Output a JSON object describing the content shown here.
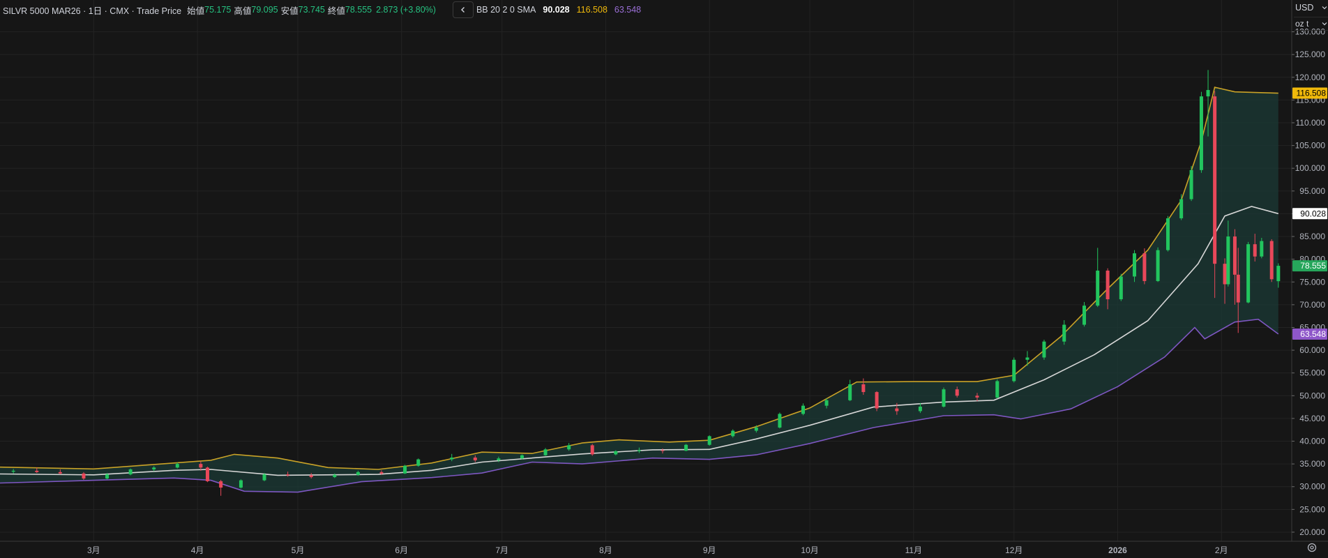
{
  "legend": {
    "symbol": "SILVR 5000 MAR26 · 1日 · CMX · Trade Price",
    "open_label": "始値",
    "open": "75.175",
    "high_label": "高値",
    "high": "79.095",
    "low_label": "安値",
    "low": "73.745",
    "close_label": "終値",
    "close": "78.555",
    "change": "2.873 (+3.80%)",
    "collapse_icon": "chevron-left-icon",
    "indicator": "BB 20 2 0 SMA",
    "basis": "90.028",
    "upper": "116.508",
    "lower": "63.548"
  },
  "currency": {
    "label": "USD",
    "unit": "oz t"
  },
  "settings_icon": "gear-icon",
  "colors": {
    "up": "#26a69a",
    "up_bright": "#22c55e",
    "down": "#e8485a",
    "upper_band": "#c9a227",
    "lower_band": "#7e57c2",
    "basis": "#d6d6d6",
    "band_fill": "#1b3a36",
    "current_price_bg": "#26a65b",
    "upper_label_bg": "#f0b90b",
    "lower_label_bg": "#8e57c9"
  },
  "chart_data": {
    "type": "candlestick",
    "title": "SILVR 5000 MAR26",
    "y_ticks": [
      20,
      25,
      30,
      35,
      40,
      45,
      50,
      55,
      60,
      65,
      70,
      75,
      80,
      85,
      90,
      95,
      100,
      105,
      110,
      115,
      120,
      125,
      130
    ],
    "ylim": [
      18,
      133
    ],
    "x_labels": [
      {
        "label": "3月",
        "date": "2025-03-01"
      },
      {
        "label": "4月",
        "date": "2025-04-01"
      },
      {
        "label": "5月",
        "date": "2025-05-01"
      },
      {
        "label": "6月",
        "date": "2025-06-01"
      },
      {
        "label": "7月",
        "date": "2025-07-01"
      },
      {
        "label": "8月",
        "date": "2025-08-01"
      },
      {
        "label": "9月",
        "date": "2025-09-01"
      },
      {
        "label": "10月",
        "date": "2025-10-01"
      },
      {
        "label": "11月",
        "date": "2025-11-01"
      },
      {
        "label": "12月",
        "date": "2025-12-01"
      },
      {
        "label": "2026",
        "date": "2026-01-01"
      },
      {
        "label": "2月",
        "date": "2026-02-01"
      }
    ],
    "xlim_dates": [
      "2025-02-01",
      "2026-02-22"
    ],
    "series": [
      {
        "name": "Price",
        "candles": [
          {
            "d": "2025-02-05",
            "o": 33.3,
            "h": 33.9,
            "l": 32.9,
            "c": 33.5
          },
          {
            "d": "2025-02-12",
            "o": 33.5,
            "h": 34.2,
            "l": 33.0,
            "c": 33.2
          },
          {
            "d": "2025-02-19",
            "o": 33.2,
            "h": 33.8,
            "l": 32.7,
            "c": 32.9
          },
          {
            "d": "2025-02-26",
            "o": 32.9,
            "h": 33.2,
            "l": 31.5,
            "c": 31.8
          },
          {
            "d": "2025-03-05",
            "o": 31.8,
            "h": 33.0,
            "l": 31.6,
            "c": 32.7
          },
          {
            "d": "2025-03-12",
            "o": 32.7,
            "h": 34.0,
            "l": 32.5,
            "c": 33.8
          },
          {
            "d": "2025-03-19",
            "o": 33.8,
            "h": 34.5,
            "l": 33.4,
            "c": 34.2
          },
          {
            "d": "2025-03-26",
            "o": 34.2,
            "h": 35.3,
            "l": 34.0,
            "c": 35.0
          },
          {
            "d": "2025-04-02",
            "o": 35.0,
            "h": 35.6,
            "l": 33.5,
            "c": 34.2
          },
          {
            "d": "2025-04-04",
            "o": 34.2,
            "h": 34.4,
            "l": 31.0,
            "c": 31.2
          },
          {
            "d": "2025-04-08",
            "o": 31.2,
            "h": 31.5,
            "l": 28.0,
            "c": 29.8
          },
          {
            "d": "2025-04-14",
            "o": 29.8,
            "h": 31.6,
            "l": 29.6,
            "c": 31.4
          },
          {
            "d": "2025-04-21",
            "o": 31.4,
            "h": 33.0,
            "l": 31.2,
            "c": 32.7
          },
          {
            "d": "2025-04-28",
            "o": 32.7,
            "h": 33.3,
            "l": 32.2,
            "c": 32.5
          },
          {
            "d": "2025-05-05",
            "o": 32.5,
            "h": 33.0,
            "l": 31.8,
            "c": 32.1
          },
          {
            "d": "2025-05-12",
            "o": 32.1,
            "h": 32.9,
            "l": 31.9,
            "c": 32.6
          },
          {
            "d": "2025-05-19",
            "o": 32.6,
            "h": 33.5,
            "l": 32.4,
            "c": 33.2
          },
          {
            "d": "2025-05-26",
            "o": 33.2,
            "h": 33.6,
            "l": 32.6,
            "c": 32.9
          },
          {
            "d": "2025-06-02",
            "o": 32.9,
            "h": 34.8,
            "l": 32.8,
            "c": 34.6
          },
          {
            "d": "2025-06-06",
            "o": 34.6,
            "h": 36.2,
            "l": 34.4,
            "c": 36.0
          },
          {
            "d": "2025-06-16",
            "o": 36.0,
            "h": 37.2,
            "l": 35.6,
            "c": 36.4
          },
          {
            "d": "2025-06-23",
            "o": 36.4,
            "h": 36.9,
            "l": 35.4,
            "c": 35.8
          },
          {
            "d": "2025-06-30",
            "o": 35.8,
            "h": 36.6,
            "l": 35.4,
            "c": 36.2
          },
          {
            "d": "2025-07-07",
            "o": 36.2,
            "h": 37.1,
            "l": 36.0,
            "c": 36.9
          },
          {
            "d": "2025-07-14",
            "o": 36.9,
            "h": 38.5,
            "l": 36.8,
            "c": 38.2
          },
          {
            "d": "2025-07-21",
            "o": 38.2,
            "h": 39.6,
            "l": 37.9,
            "c": 39.1
          },
          {
            "d": "2025-07-28",
            "o": 39.1,
            "h": 39.4,
            "l": 36.8,
            "c": 37.1
          },
          {
            "d": "2025-08-04",
            "o": 37.1,
            "h": 38.0,
            "l": 36.9,
            "c": 37.8
          },
          {
            "d": "2025-08-11",
            "o": 37.8,
            "h": 38.6,
            "l": 37.4,
            "c": 38.0
          },
          {
            "d": "2025-08-18",
            "o": 38.0,
            "h": 38.4,
            "l": 37.3,
            "c": 37.9
          },
          {
            "d": "2025-08-25",
            "o": 37.9,
            "h": 39.4,
            "l": 37.8,
            "c": 39.2
          },
          {
            "d": "2025-09-01",
            "o": 39.2,
            "h": 41.3,
            "l": 39.0,
            "c": 41.1
          },
          {
            "d": "2025-09-08",
            "o": 41.1,
            "h": 42.6,
            "l": 40.8,
            "c": 42.3
          },
          {
            "d": "2025-09-15",
            "o": 42.3,
            "h": 43.5,
            "l": 41.9,
            "c": 43.0
          },
          {
            "d": "2025-09-22",
            "o": 43.0,
            "h": 46.3,
            "l": 42.8,
            "c": 46.0
          },
          {
            "d": "2025-09-29",
            "o": 46.0,
            "h": 48.3,
            "l": 45.7,
            "c": 47.8
          },
          {
            "d": "2025-10-06",
            "o": 47.8,
            "h": 49.4,
            "l": 47.2,
            "c": 49.0
          },
          {
            "d": "2025-10-13",
            "o": 49.0,
            "h": 53.5,
            "l": 48.8,
            "c": 52.5
          },
          {
            "d": "2025-10-17",
            "o": 52.5,
            "h": 53.8,
            "l": 50.2,
            "c": 50.8
          },
          {
            "d": "2025-10-21",
            "o": 50.8,
            "h": 51.0,
            "l": 46.6,
            "c": 47.2
          },
          {
            "d": "2025-10-27",
            "o": 47.2,
            "h": 48.4,
            "l": 45.8,
            "c": 46.6
          },
          {
            "d": "2025-11-03",
            "o": 46.6,
            "h": 48.4,
            "l": 46.2,
            "c": 47.6
          },
          {
            "d": "2025-11-10",
            "o": 47.6,
            "h": 51.8,
            "l": 47.4,
            "c": 51.4
          },
          {
            "d": "2025-11-14",
            "o": 51.4,
            "h": 52.0,
            "l": 49.6,
            "c": 50.0
          },
          {
            "d": "2025-11-20",
            "o": 50.0,
            "h": 50.6,
            "l": 48.8,
            "c": 49.6
          },
          {
            "d": "2025-11-26",
            "o": 49.6,
            "h": 53.6,
            "l": 49.4,
            "c": 53.2
          },
          {
            "d": "2025-12-01",
            "o": 53.2,
            "h": 58.4,
            "l": 52.9,
            "c": 57.9
          },
          {
            "d": "2025-12-05",
            "o": 57.9,
            "h": 59.8,
            "l": 56.6,
            "c": 58.4
          },
          {
            "d": "2025-12-10",
            "o": 58.4,
            "h": 62.3,
            "l": 57.9,
            "c": 61.9
          },
          {
            "d": "2025-12-16",
            "o": 61.9,
            "h": 66.6,
            "l": 61.2,
            "c": 65.6
          },
          {
            "d": "2025-12-22",
            "o": 65.6,
            "h": 70.6,
            "l": 65.2,
            "c": 69.8
          },
          {
            "d": "2025-12-26",
            "o": 69.8,
            "h": 82.5,
            "l": 69.5,
            "c": 77.5
          },
          {
            "d": "2025-12-29",
            "o": 77.5,
            "h": 78.0,
            "l": 69.0,
            "c": 71.2
          },
          {
            "d": "2026-01-02",
            "o": 71.2,
            "h": 76.8,
            "l": 70.8,
            "c": 76.2
          },
          {
            "d": "2026-01-06",
            "o": 76.2,
            "h": 82.0,
            "l": 75.0,
            "c": 81.3
          },
          {
            "d": "2026-01-09",
            "o": 81.3,
            "h": 82.4,
            "l": 74.5,
            "c": 75.2
          },
          {
            "d": "2026-01-13",
            "o": 75.2,
            "h": 82.6,
            "l": 75.0,
            "c": 82.0
          },
          {
            "d": "2026-01-16",
            "o": 82.0,
            "h": 89.5,
            "l": 81.7,
            "c": 89.0
          },
          {
            "d": "2026-01-20",
            "o": 89.0,
            "h": 94.3,
            "l": 88.6,
            "c": 93.2
          },
          {
            "d": "2026-01-23",
            "o": 93.2,
            "h": 100.5,
            "l": 92.8,
            "c": 99.6
          },
          {
            "d": "2026-01-26",
            "o": 99.6,
            "h": 116.8,
            "l": 99.0,
            "c": 115.8
          },
          {
            "d": "2026-01-28",
            "o": 115.8,
            "h": 121.6,
            "l": 107.0,
            "c": 117.2
          },
          {
            "d": "2026-01-30",
            "o": 115.8,
            "h": 117.0,
            "l": 71.5,
            "c": 79.0
          },
          {
            "d": "2026-02-02",
            "o": 79.0,
            "h": 80.2,
            "l": 70.2,
            "c": 74.5
          },
          {
            "d": "2026-02-03",
            "o": 74.5,
            "h": 88.5,
            "l": 74.0,
            "c": 85.0
          },
          {
            "d": "2026-02-05",
            "o": 85.0,
            "h": 86.6,
            "l": 70.0,
            "c": 76.6
          },
          {
            "d": "2026-02-06",
            "o": 76.6,
            "h": 82.5,
            "l": 63.8,
            "c": 70.5
          },
          {
            "d": "2026-02-09",
            "o": 70.5,
            "h": 83.8,
            "l": 70.3,
            "c": 83.3
          },
          {
            "d": "2026-02-11",
            "o": 83.3,
            "h": 85.6,
            "l": 79.5,
            "c": 80.6
          },
          {
            "d": "2026-02-13",
            "o": 80.6,
            "h": 84.7,
            "l": 80.2,
            "c": 84.0
          },
          {
            "d": "2026-02-16",
            "o": 84.0,
            "h": 84.4,
            "l": 75.0,
            "c": 75.6
          },
          {
            "d": "2026-02-18",
            "o": 75.175,
            "h": 79.095,
            "l": 73.745,
            "c": 78.555
          }
        ]
      },
      {
        "name": "BB Upper",
        "points": [
          {
            "d": "2025-02-01",
            "v": 34.3
          },
          {
            "d": "2025-03-01",
            "v": 33.9
          },
          {
            "d": "2025-03-25",
            "v": 35.2
          },
          {
            "d": "2025-04-05",
            "v": 35.8
          },
          {
            "d": "2025-04-12",
            "v": 37.1
          },
          {
            "d": "2025-04-25",
            "v": 36.3
          },
          {
            "d": "2025-05-10",
            "v": 34.2
          },
          {
            "d": "2025-05-25",
            "v": 33.8
          },
          {
            "d": "2025-06-10",
            "v": 35.2
          },
          {
            "d": "2025-06-25",
            "v": 37.6
          },
          {
            "d": "2025-07-10",
            "v": 37.3
          },
          {
            "d": "2025-07-25",
            "v": 39.6
          },
          {
            "d": "2025-08-05",
            "v": 40.3
          },
          {
            "d": "2025-08-20",
            "v": 39.8
          },
          {
            "d": "2025-09-01",
            "v": 40.2
          },
          {
            "d": "2025-09-15",
            "v": 43.2
          },
          {
            "d": "2025-10-01",
            "v": 47.3
          },
          {
            "d": "2025-10-15",
            "v": 53.0
          },
          {
            "d": "2025-11-01",
            "v": 53.1
          },
          {
            "d": "2025-11-20",
            "v": 53.1
          },
          {
            "d": "2025-12-01",
            "v": 54.5
          },
          {
            "d": "2025-12-15",
            "v": 63.0
          },
          {
            "d": "2025-12-29",
            "v": 73.5
          },
          {
            "d": "2026-01-10",
            "v": 82.0
          },
          {
            "d": "2026-01-20",
            "v": 93.0
          },
          {
            "d": "2026-01-26",
            "v": 106.0
          },
          {
            "d": "2026-01-30",
            "v": 117.8
          },
          {
            "d": "2026-02-05",
            "v": 116.8
          },
          {
            "d": "2026-02-18",
            "v": 116.508
          }
        ]
      },
      {
        "name": "BB Basis",
        "points": [
          {
            "d": "2025-02-01",
            "v": 32.8
          },
          {
            "d": "2025-03-01",
            "v": 32.6
          },
          {
            "d": "2025-03-25",
            "v": 33.6
          },
          {
            "d": "2025-04-05",
            "v": 33.8
          },
          {
            "d": "2025-04-25",
            "v": 32.5
          },
          {
            "d": "2025-05-25",
            "v": 32.7
          },
          {
            "d": "2025-06-10",
            "v": 33.6
          },
          {
            "d": "2025-06-25",
            "v": 35.4
          },
          {
            "d": "2025-07-25",
            "v": 37.2
          },
          {
            "d": "2025-08-15",
            "v": 38.1
          },
          {
            "d": "2025-09-01",
            "v": 38.2
          },
          {
            "d": "2025-09-15",
            "v": 40.5
          },
          {
            "d": "2025-10-01",
            "v": 43.5
          },
          {
            "d": "2025-10-20",
            "v": 47.5
          },
          {
            "d": "2025-11-10",
            "v": 48.6
          },
          {
            "d": "2025-11-25",
            "v": 49.0
          },
          {
            "d": "2025-12-10",
            "v": 53.5
          },
          {
            "d": "2025-12-25",
            "v": 59.0
          },
          {
            "d": "2026-01-10",
            "v": 66.5
          },
          {
            "d": "2026-01-25",
            "v": 79.0
          },
          {
            "d": "2026-02-02",
            "v": 89.5
          },
          {
            "d": "2026-02-10",
            "v": 91.6
          },
          {
            "d": "2026-02-18",
            "v": 90.028
          }
        ]
      },
      {
        "name": "BB Lower",
        "points": [
          {
            "d": "2025-02-01",
            "v": 30.8
          },
          {
            "d": "2025-03-01",
            "v": 31.4
          },
          {
            "d": "2025-03-25",
            "v": 31.9
          },
          {
            "d": "2025-04-05",
            "v": 31.4
          },
          {
            "d": "2025-04-15",
            "v": 29.0
          },
          {
            "d": "2025-05-01",
            "v": 28.8
          },
          {
            "d": "2025-05-20",
            "v": 31.1
          },
          {
            "d": "2025-06-10",
            "v": 32.0
          },
          {
            "d": "2025-06-25",
            "v": 33.0
          },
          {
            "d": "2025-07-10",
            "v": 35.4
          },
          {
            "d": "2025-07-25",
            "v": 35.0
          },
          {
            "d": "2025-08-15",
            "v": 36.3
          },
          {
            "d": "2025-09-01",
            "v": 36.0
          },
          {
            "d": "2025-09-15",
            "v": 37.0
          },
          {
            "d": "2025-10-01",
            "v": 39.5
          },
          {
            "d": "2025-10-20",
            "v": 43.0
          },
          {
            "d": "2025-11-10",
            "v": 45.6
          },
          {
            "d": "2025-11-25",
            "v": 45.8
          },
          {
            "d": "2025-12-03",
            "v": 44.9
          },
          {
            "d": "2025-12-18",
            "v": 47.1
          },
          {
            "d": "2026-01-01",
            "v": 52.0
          },
          {
            "d": "2026-01-15",
            "v": 58.5
          },
          {
            "d": "2026-01-24",
            "v": 65.0
          },
          {
            "d": "2026-01-27",
            "v": 62.5
          },
          {
            "d": "2026-02-05",
            "v": 66.2
          },
          {
            "d": "2026-02-12",
            "v": 66.8
          },
          {
            "d": "2026-02-18",
            "v": 63.548
          }
        ]
      }
    ],
    "price_labels": [
      {
        "name": "upper",
        "value": 116.508,
        "text": "116.508"
      },
      {
        "name": "basis",
        "value": 90.028,
        "text": "90.028"
      },
      {
        "name": "close",
        "value": 78.555,
        "text": "78.555"
      },
      {
        "name": "lower",
        "value": 63.548,
        "text": "63.548"
      }
    ]
  }
}
